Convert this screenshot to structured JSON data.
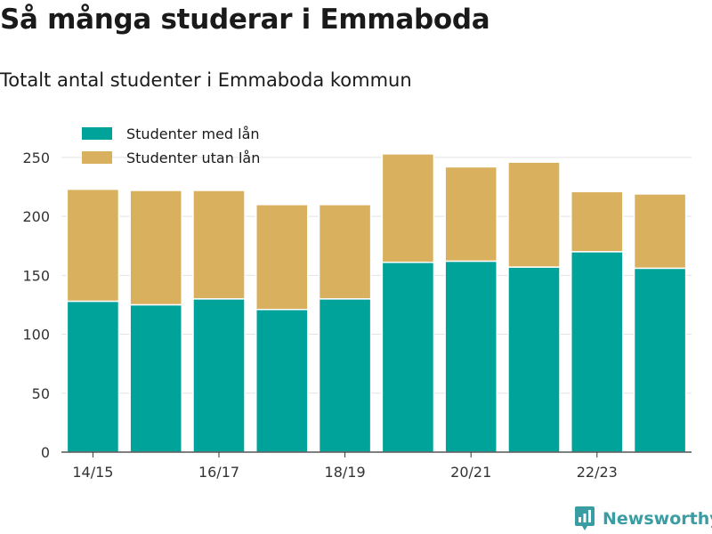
{
  "title": "Så många studerar i Emmaboda",
  "subtitle": "Totalt antal studenter i Emmaboda kommun",
  "brand": {
    "name": "Newsworthy",
    "icon": "newsworthy-logo-icon",
    "color": "#3a9da3"
  },
  "chart_data": {
    "type": "bar",
    "stacked": true,
    "categories": [
      "14/15",
      "15/16",
      "16/17",
      "17/18",
      "18/19",
      "19/20",
      "20/21",
      "21/22",
      "22/23",
      "23/24"
    ],
    "x_tick_labels": [
      "14/15",
      "",
      "16/17",
      "",
      "18/19",
      "",
      "20/21",
      "",
      "22/23",
      ""
    ],
    "series": [
      {
        "name": "Studenter med lån",
        "color": "#00a39a",
        "values": [
          128,
          125,
          130,
          121,
          130,
          161,
          162,
          157,
          170,
          156
        ]
      },
      {
        "name": "Studenter utan lån",
        "color": "#d9b05d",
        "values": [
          95,
          97,
          92,
          89,
          80,
          92,
          80,
          89,
          51,
          63
        ]
      }
    ],
    "ylim": [
      0,
      265
    ],
    "yticks": [
      0,
      50,
      100,
      150,
      200,
      250
    ],
    "grid": true,
    "legend_position": "top-left",
    "xlabel": "",
    "ylabel": ""
  }
}
